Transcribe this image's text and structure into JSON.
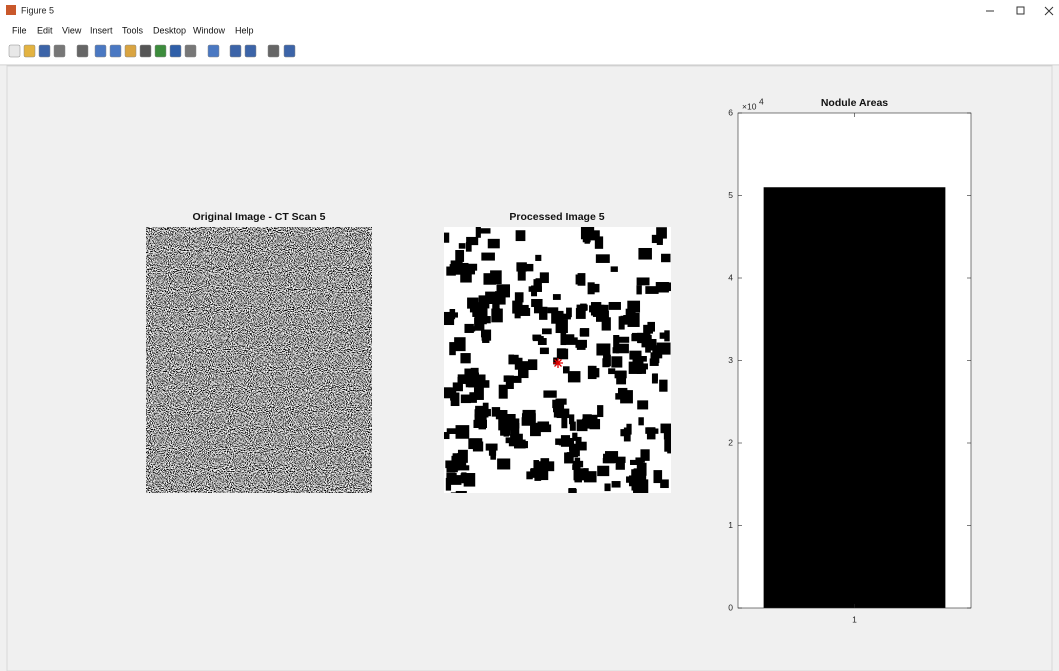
{
  "window": {
    "title": "Figure 5"
  },
  "menu": [
    "File",
    "Edit",
    "View",
    "Insert",
    "Tools",
    "Desktop",
    "Window",
    "Help"
  ],
  "images": [
    {
      "title": "Original Image - CT Scan 5"
    },
    {
      "title": "Processed Image 5"
    }
  ],
  "chart_data": {
    "type": "bar",
    "title": "Nodule Areas",
    "categories": [
      "1"
    ],
    "values": [
      51000
    ],
    "color": "#000000",
    "ylim": [
      0,
      60000
    ],
    "yticks": [
      0,
      {
        "value": 10000,
        "label": "1"
      },
      {
        "value": 20000,
        "label": "2"
      },
      {
        "value": 30000,
        "label": "3"
      },
      {
        "value": 40000,
        "label": "4"
      },
      {
        "value": 50000,
        "label": "5"
      },
      {
        "value": 60000,
        "label": "6"
      }
    ],
    "y_multiplier": {
      "base": "×10",
      "exponent": "4"
    },
    "grid": false
  }
}
